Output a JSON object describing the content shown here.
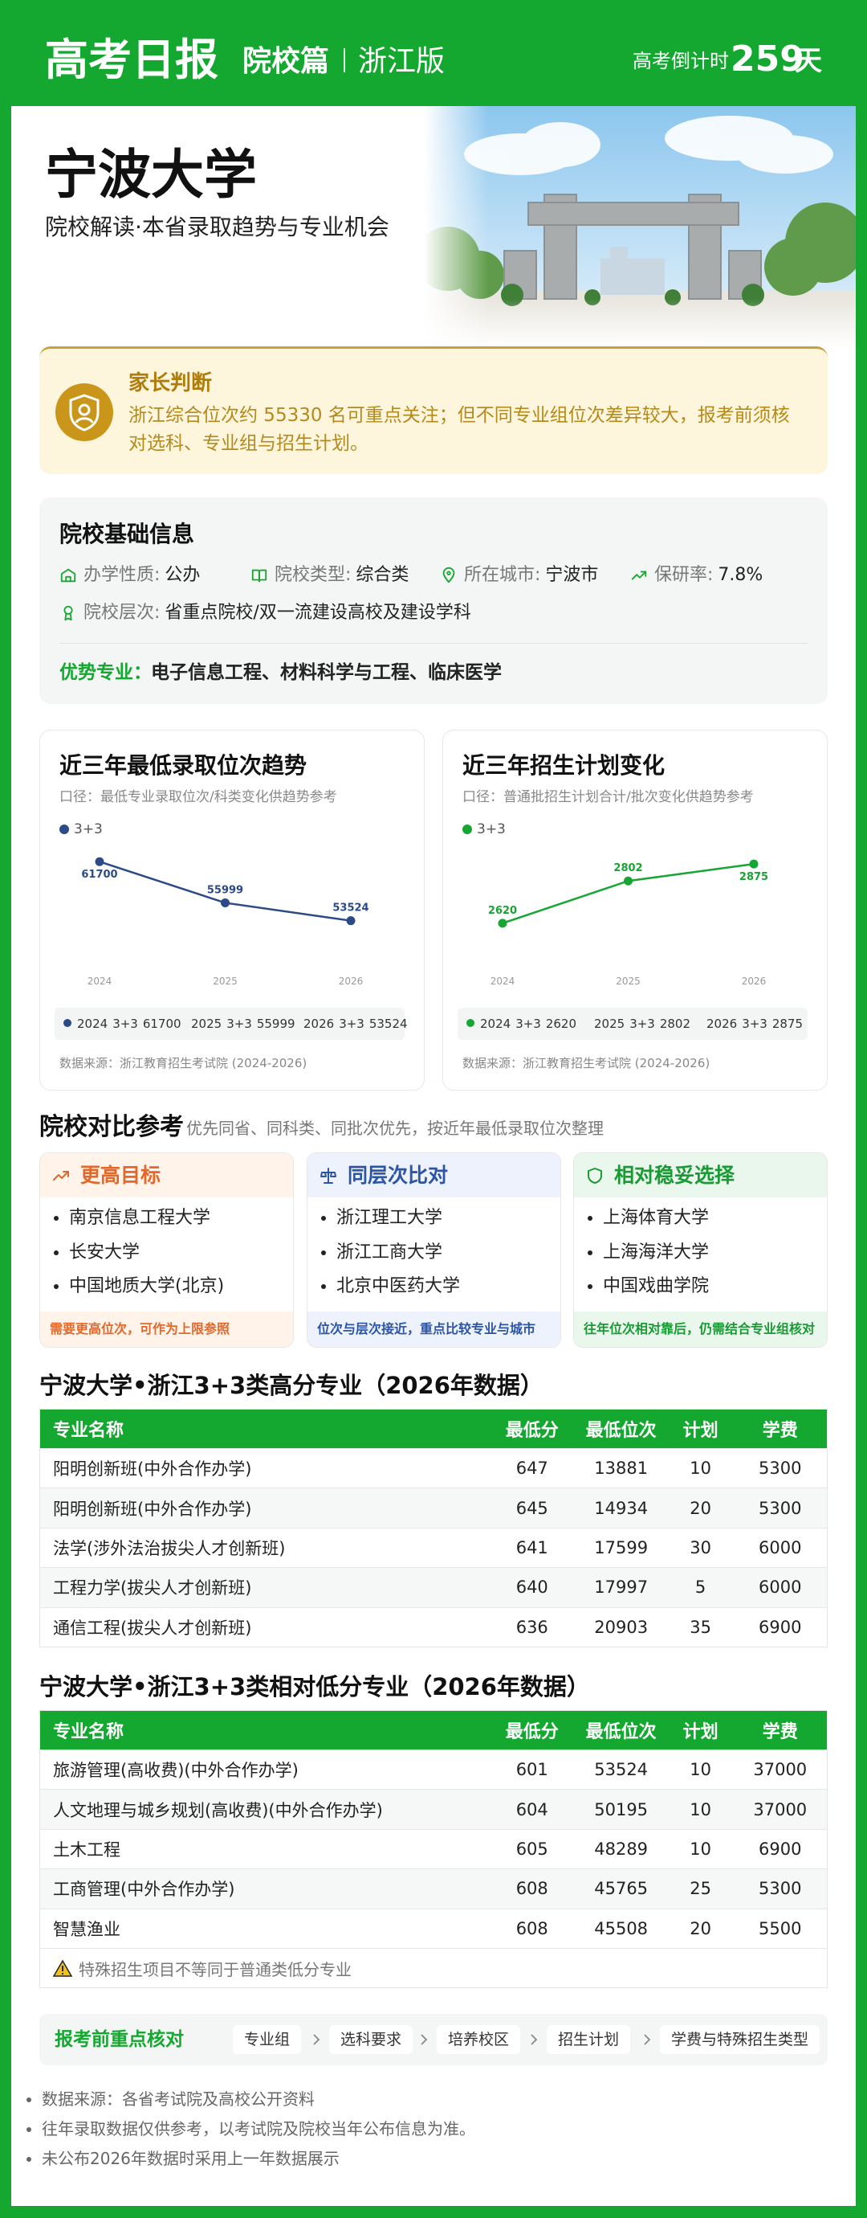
{
  "header": {
    "title": "高考日报",
    "section": "院校篇",
    "edition": "浙江版",
    "countdown_label": "高考倒计时",
    "countdown_days": 259,
    "countdown_unit": "天"
  },
  "hero": {
    "title": "宁波大学",
    "subtitle": "院校解读·本省录取趋势与专业机会"
  },
  "judgment": {
    "title": "家长判断",
    "text": "浙江综合位次约 55330 名可重点关注；但不同专业组位次差异较大，报考前须核对选科、专业组与招生计划。"
  },
  "basic_info": {
    "title": "院校基础信息",
    "items": [
      {
        "label": "办学性质:",
        "value": "公办"
      },
      {
        "label": "院校类型:",
        "value": "综合类"
      },
      {
        "label": "所在城市:",
        "value": "宁波市"
      },
      {
        "label": "保研率:",
        "value": "7.8%"
      },
      {
        "label": "院校层次:",
        "value": "省重点院校/双一流建设高校及建设学科"
      }
    ],
    "strengths_label": "优势专业：",
    "strengths": "电子信息工程、材料科学与工程、临床医学"
  },
  "chart_data": [
    {
      "type": "line",
      "title": "近三年最低录取位次趋势",
      "subtitle": "口径：最低专业录取位次/科类变化供趋势参考",
      "categories": [
        "2024",
        "2025",
        "2026"
      ],
      "series": [
        {
          "name": "3+3",
          "color": "#2b4a86",
          "values": [
            61700,
            55999,
            53524
          ]
        }
      ],
      "ylim": [
        47700,
        65400
      ],
      "source": "数据来源：浙江教育招生考试院 (2024-2026)"
    },
    {
      "type": "line",
      "title": "近三年招生计划变化",
      "subtitle": "口径：普通批招生计划合计/批次变化供趋势参考",
      "categories": [
        "2024",
        "2025",
        "2026"
      ],
      "series": [
        {
          "name": "3+3",
          "color": "#17a533",
          "values": [
            2620,
            2802,
            2875
          ]
        }
      ],
      "ylim": [
        2450,
        3000
      ],
      "source": "数据来源：浙江教育招生考试院 (2024-2026)"
    }
  ],
  "comparison": {
    "title": "院校对比参考",
    "note": "优先同省、同科类、同批次优先，按近年最低录取位次整理",
    "groups": [
      {
        "title": "更高目标",
        "schools": [
          "南京信息工程大学",
          "长安大学",
          "中国地质大学(北京)"
        ],
        "footer": "需要更高位次，可作为上限参照"
      },
      {
        "title": "同层次比对",
        "schools": [
          "浙江理工大学",
          "浙江工商大学",
          "北京中医药大学"
        ],
        "footer": "位次与层次接近，重点比较专业与城市"
      },
      {
        "title": "相对稳妥选择",
        "schools": [
          "上海体育大学",
          "上海海洋大学",
          "中国戏曲学院"
        ],
        "footer": "往年位次相对靠后，仍需结合专业组核对"
      }
    ]
  },
  "tables": [
    {
      "title": "宁波大学•浙江3+3类高分专业（2026年数据）",
      "columns": [
        "专业名称",
        "最低分",
        "最低位次",
        "计划",
        "学费"
      ],
      "rows": [
        [
          "阳明创新班(中外合作办学)",
          647,
          13881,
          10,
          5300
        ],
        [
          "阳明创新班(中外合作办学)",
          645,
          14934,
          20,
          5300
        ],
        [
          "法学(涉外法治拔尖人才创新班)",
          641,
          17599,
          30,
          6000
        ],
        [
          "工程力学(拔尖人才创新班)",
          640,
          17997,
          5,
          6000
        ],
        [
          "通信工程(拔尖人才创新班)",
          636,
          20903,
          35,
          6900
        ]
      ]
    },
    {
      "title": "宁波大学•浙江3+3类相对低分专业（2026年数据）",
      "columns": [
        "专业名称",
        "最低分",
        "最低位次",
        "计划",
        "学费"
      ],
      "rows": [
        [
          "旅游管理(高收费)(中外合作办学)",
          601,
          53524,
          10,
          37000
        ],
        [
          "人文地理与城乡规划(高收费)(中外合作办学)",
          604,
          50195,
          10,
          37000
        ],
        [
          "土木工程",
          605,
          48289,
          10,
          6900
        ],
        [
          "工商管理(中外合作办学)",
          608,
          45765,
          25,
          5300
        ],
        [
          "智慧渔业",
          608,
          45508,
          20,
          5500
        ]
      ],
      "note": "特殊招生项目不等同于普通类低分专业"
    }
  ],
  "checklist": {
    "title": "报考前重点核对",
    "steps": [
      "专业组",
      "选科要求",
      "培养校区",
      "招生计划",
      "学费与特殊招生类型"
    ]
  },
  "footnotes": [
    "数据来源：各省考试院及高校公开资料",
    "往年录取数据仅供参考，以考试院及院校当年公布信息为准。",
    "未公布2026年数据时采用上一年数据展示"
  ]
}
